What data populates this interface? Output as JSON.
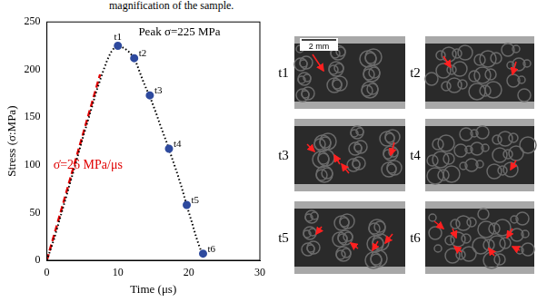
{
  "chart_data": {
    "type": "line",
    "x_label": "Time (μs)",
    "y_label": "Stress (σ:MPa)",
    "xlim": [
      0,
      30
    ],
    "xticks": [
      0,
      10,
      20,
      30
    ],
    "ylim": [
      0,
      250
    ],
    "yticks": [
      0,
      50,
      100,
      150,
      200,
      250
    ],
    "grid": false,
    "annotations": [
      {
        "text": "Peak σ=225 MPa",
        "color": "#000000"
      },
      {
        "text": "σ̇=26 MPa/μs",
        "color": "#e00000"
      }
    ],
    "series": [
      {
        "color": "#000000",
        "line_style": "dotted",
        "x": [
          0,
          1,
          2,
          3,
          4,
          5,
          6,
          7,
          8,
          8.5,
          9,
          9.5,
          10,
          10.5,
          11,
          11.5,
          12,
          12.5,
          13,
          13.5,
          14,
          14.5,
          15,
          15.5,
          16,
          16.5,
          17,
          17.5,
          18,
          18.5,
          19,
          19.5,
          20,
          20.5,
          21,
          21.5,
          22
        ],
        "values": [
          0,
          22,
          48,
          74,
          100,
          127,
          152,
          178,
          200,
          210,
          218,
          223,
          225,
          224,
          222,
          219,
          215,
          209,
          199,
          189,
          180,
          172,
          162,
          152,
          141,
          131,
          121,
          110,
          99,
          88,
          76,
          63,
          50,
          38,
          25,
          14,
          5
        ]
      },
      {
        "color": "#e00000",
        "line_style": "dashed",
        "x": [
          0,
          7.5
        ],
        "values": [
          0,
          195
        ]
      },
      {
        "type": "scatter",
        "color": "#2e4a9e",
        "marker": "circle",
        "x": [
          10,
          12.3,
          14.5,
          17.2,
          19.7,
          22
        ],
        "values": [
          225,
          212,
          173,
          117,
          58,
          7
        ],
        "labels": [
          "t1",
          "t2",
          "t3",
          "t4",
          "t5",
          "t6"
        ]
      }
    ]
  },
  "caption_fragment": "magnification of the sample.",
  "image_panels": {
    "labels": [
      "t1",
      "t2",
      "t3",
      "t4",
      "t5",
      "t6"
    ],
    "scale_bar": "2 mm"
  }
}
